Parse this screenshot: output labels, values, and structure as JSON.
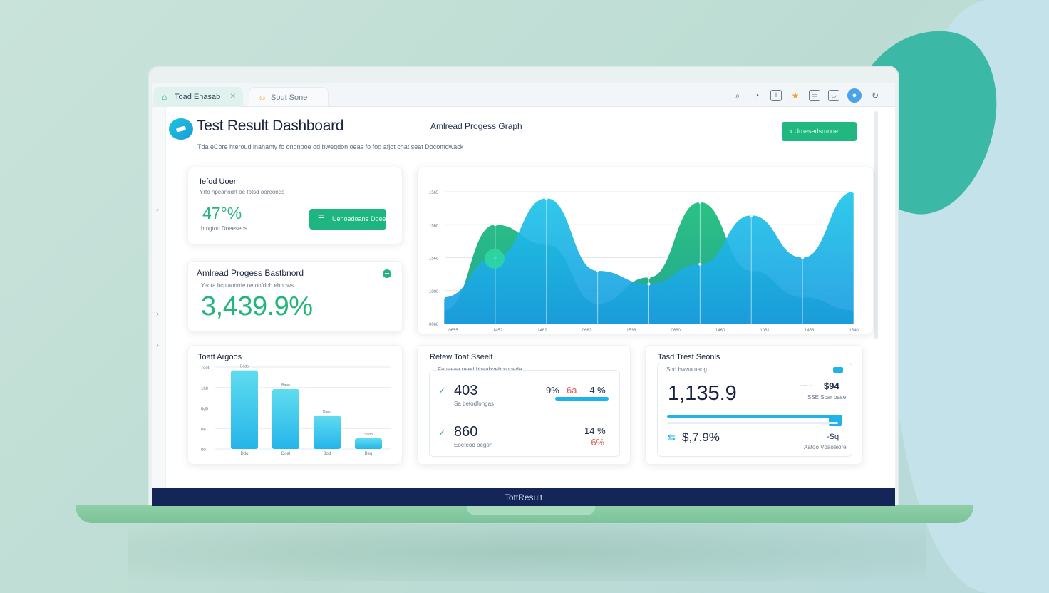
{
  "browser": {
    "tabs": [
      {
        "label": "Toad Enasab",
        "active": true
      },
      {
        "label": "Sout Sone",
        "active": false
      }
    ]
  },
  "header": {
    "title": "Test Result Dashboard",
    "graph_heading": "Amlread Progess Graph",
    "subtitle": "Tda eCore hteroud inahanty fo ongnpoe od bwegdon oeas fo fod afjot chat seat Docomdwack",
    "action_button": "Urnesedsrunoe"
  },
  "card_user": {
    "title": "Iefod Uoer",
    "subtitle": "Yrfo hpeanodrt oe fotsd ooreonds",
    "value": "47°%",
    "caption": "bmgtod Doeeseos",
    "button_label": "Uenoedoane Doee"
  },
  "card_progress": {
    "title": "Amlread Progess Bastbnord",
    "subtitle": "Yeora hcplaonrde oe ohfdoh ebnows",
    "value": "3,439.9%"
  },
  "card_bars": {
    "title": "Toatt Argoos"
  },
  "card_results": {
    "title": "Retew Toat Sseelt",
    "subtitle": "Faneeae oeed bhaaboehrsooede",
    "row1_value": "403",
    "row1_caption": "Sa betodfongas",
    "row1_pct_left": "9%",
    "row1_pct_mid": "6a",
    "row1_pct_right": "-4 %",
    "row2_value": "860",
    "row2_caption": "Eoeteod oegon",
    "row2_pct": "14 %",
    "row2_pct_red": "-6%"
  },
  "card_score": {
    "title": "Tasd Trest Seonls",
    "subtitle": "Sod bwwa uang",
    "value": "1,135.9",
    "side_value": "$94",
    "side_prefix": "--- -",
    "side_caption": "SSE Scar oase",
    "bottom_value": "$,7.9%",
    "bottom_right": "-Sq",
    "bottom_caption": "Aatoo Vdaoeiore"
  },
  "footer": {
    "label": "TottResult"
  },
  "colors": {
    "accent_green": "#22b67c",
    "accent_cyan": "#1fb3e8",
    "navy": "#142557"
  },
  "chart_data": [
    {
      "type": "area",
      "title": "Amlread Progess Graph",
      "y_ticks": [
        "1565",
        "1560",
        "1560",
        "1000",
        "0060"
      ],
      "x_ticks": [
        "0655",
        "1452",
        "1462",
        "0662",
        "1536",
        "0660",
        "1460",
        "1061",
        "1456",
        "1540"
      ],
      "series": [
        {
          "color": "#1fb3e8",
          "values": [
            0.2,
            0.5,
            0.95,
            0.4,
            0.3,
            0.45,
            0.82,
            0.5,
            1.0
          ]
        },
        {
          "color": "#22b67c",
          "values": [
            0.1,
            0.75,
            0.6,
            0.15,
            0.35,
            0.92,
            0.4,
            0.2,
            0.1
          ]
        }
      ]
    },
    {
      "type": "bar",
      "title": "Toatt Argoos",
      "y_ticks": [
        "Toot",
        "1h0",
        "0d0",
        "06",
        "00"
      ],
      "categories": [
        "Ddo",
        "Doal",
        "Bod",
        "Beq"
      ],
      "values": [
        0.96,
        0.73,
        0.41,
        0.13
      ],
      "value_labels": [
        "Dddo",
        "Baao",
        "Daed",
        "Sodo"
      ]
    }
  ]
}
